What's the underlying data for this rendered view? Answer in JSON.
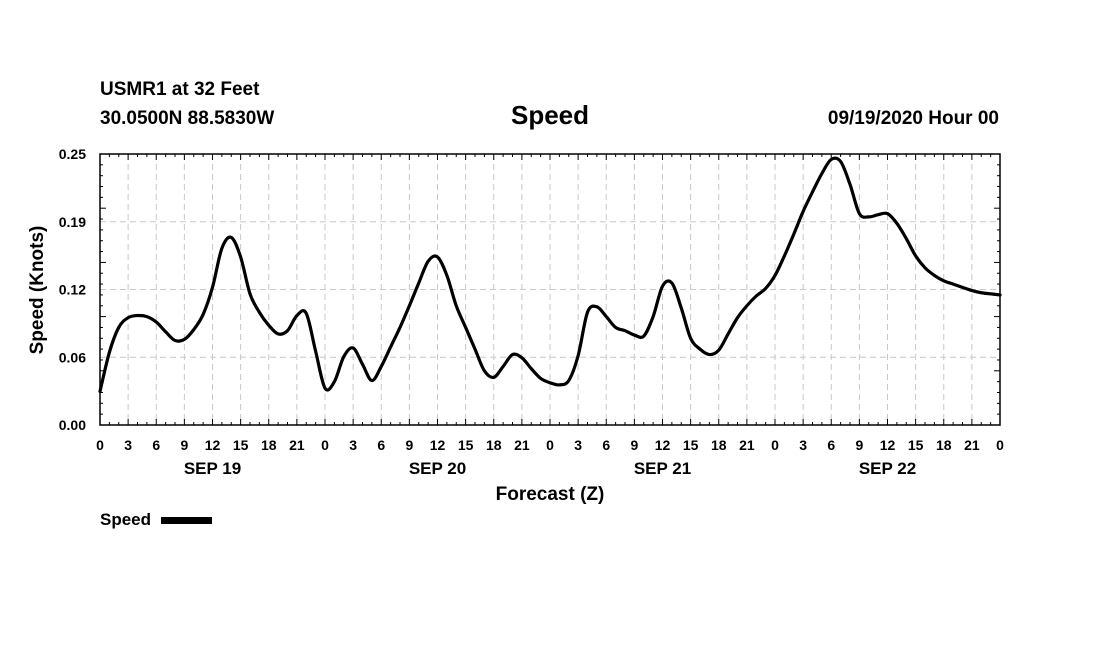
{
  "header": {
    "station": "USMR1 at 32 Feet",
    "coords": "30.0500N 88.5830W",
    "datetime": "09/19/2020 Hour 00"
  },
  "chart_data": {
    "type": "line",
    "title": "Speed",
    "xlabel": "Forecast (Z)",
    "ylabel": "Speed (Knots)",
    "xlim": [
      0,
      96
    ],
    "ylim": [
      0,
      0.25
    ],
    "y_ticks": [
      "0.00",
      "0.06",
      "0.12",
      "0.19",
      "0.25"
    ],
    "x_ticks": [
      "0",
      "3",
      "6",
      "9",
      "12",
      "15",
      "18",
      "21",
      "0",
      "3",
      "6",
      "9",
      "12",
      "15",
      "18",
      "21",
      "0",
      "3",
      "6",
      "9",
      "12",
      "15",
      "18",
      "21",
      "0",
      "3",
      "6",
      "9",
      "12",
      "15",
      "18",
      "21",
      "0"
    ],
    "day_labels": [
      {
        "label": "SEP 19",
        "hour": 12
      },
      {
        "label": "SEP 20",
        "hour": 36
      },
      {
        "label": "SEP 21",
        "hour": 60
      },
      {
        "label": "SEP 22",
        "hour": 84
      }
    ],
    "grid": true,
    "legend": {
      "position": "bottom-left",
      "entries": [
        "Speed"
      ]
    },
    "series": [
      {
        "name": "Speed",
        "color": "#000000",
        "x": [
          0,
          1,
          2,
          3,
          4,
          5,
          6,
          7,
          8,
          9,
          10,
          11,
          12,
          13,
          14,
          15,
          16,
          17,
          18,
          19,
          20,
          21,
          22,
          23,
          24,
          25,
          26,
          27,
          28,
          29,
          30,
          31,
          32,
          33,
          34,
          35,
          36,
          37,
          38,
          39,
          40,
          41,
          42,
          43,
          44,
          45,
          46,
          47,
          48,
          49,
          50,
          51,
          52,
          53,
          54,
          55,
          56,
          57,
          58,
          59,
          60,
          61,
          62,
          63,
          64,
          65,
          66,
          67,
          68,
          69,
          70,
          71,
          72,
          73,
          74,
          75,
          76,
          77,
          78,
          79,
          80,
          81,
          82,
          83,
          84,
          85,
          86,
          87,
          88,
          89,
          90,
          91,
          92,
          93,
          94,
          95,
          96
        ],
        "values": [
          0.031,
          0.067,
          0.09,
          0.099,
          0.101,
          0.1,
          0.095,
          0.086,
          0.078,
          0.079,
          0.088,
          0.102,
          0.127,
          0.163,
          0.173,
          0.155,
          0.121,
          0.104,
          0.092,
          0.084,
          0.087,
          0.101,
          0.103,
          0.068,
          0.034,
          0.04,
          0.063,
          0.071,
          0.056,
          0.041,
          0.054,
          0.072,
          0.09,
          0.11,
          0.131,
          0.151,
          0.155,
          0.138,
          0.11,
          0.09,
          0.07,
          0.05,
          0.044,
          0.054,
          0.065,
          0.062,
          0.052,
          0.043,
          0.039,
          0.037,
          0.041,
          0.064,
          0.104,
          0.109,
          0.1,
          0.09,
          0.087,
          0.083,
          0.082,
          0.1,
          0.128,
          0.131,
          0.108,
          0.08,
          0.07,
          0.065,
          0.069,
          0.084,
          0.099,
          0.11,
          0.119,
          0.126,
          0.138,
          0.156,
          0.176,
          0.197,
          0.215,
          0.232,
          0.245,
          0.243,
          0.222,
          0.195,
          0.192,
          0.194,
          0.195,
          0.186,
          0.172,
          0.156,
          0.145,
          0.138,
          0.133,
          0.13,
          0.127,
          0.124,
          0.122,
          0.121,
          0.12
        ]
      }
    ]
  }
}
